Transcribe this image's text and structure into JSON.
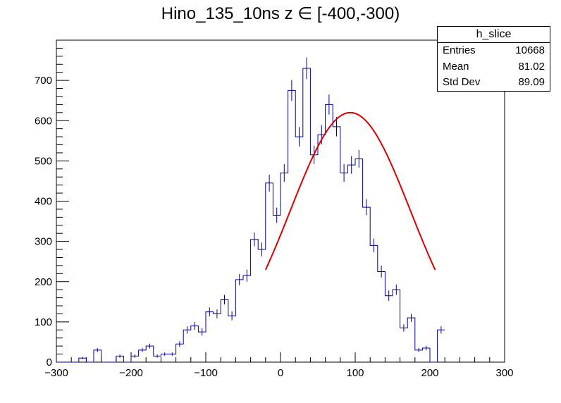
{
  "canvas": {
    "background": "#ffffff"
  },
  "chart_data": {
    "type": "histogram",
    "title": "Hino_135_10ns z  ∈ [-400,-300)",
    "xlim": [
      -300,
      300
    ],
    "ylim": [
      0,
      800
    ],
    "xticks": [
      -300,
      -200,
      -100,
      0,
      100,
      200,
      300
    ],
    "xtick_labels": [
      "−300",
      "−200",
      "−100",
      "0",
      "100",
      "200",
      "300"
    ],
    "yticks": [
      0,
      100,
      200,
      300,
      400,
      500,
      600,
      700
    ],
    "bin_width": 10,
    "bin_edges_start": -300,
    "values": [
      0,
      0,
      0,
      10,
      0,
      30,
      0,
      0,
      15,
      0,
      15,
      30,
      40,
      15,
      20,
      20,
      45,
      80,
      90,
      75,
      125,
      120,
      155,
      115,
      205,
      215,
      305,
      280,
      445,
      365,
      470,
      675,
      560,
      730,
      515,
      565,
      640,
      585,
      470,
      490,
      505,
      385,
      290,
      225,
      165,
      180,
      85,
      110,
      30,
      35,
      0,
      80
    ],
    "errors": [
      0,
      0,
      0,
      3,
      0,
      5,
      0,
      0,
      4,
      0,
      4,
      5,
      6,
      4,
      4,
      4,
      7,
      9,
      10,
      9,
      11,
      11,
      12,
      11,
      14,
      15,
      17,
      17,
      21,
      19,
      22,
      26,
      24,
      27,
      23,
      24,
      25,
      24,
      22,
      22,
      22,
      20,
      17,
      15,
      13,
      13,
      9,
      10,
      5,
      6,
      0,
      9
    ],
    "fit": {
      "mean": 93.5,
      "sigma": 80.5,
      "amplitude": 620,
      "range": [
        -20,
        207
      ]
    },
    "colors": {
      "hist": "#000099",
      "fit": "#dd0000",
      "axis": "#000000"
    },
    "stats": {
      "name": "h_slice",
      "rows": [
        {
          "label": "Entries",
          "value": "10668"
        },
        {
          "label": "Mean",
          "value": "81.02"
        },
        {
          "label": "Std Dev",
          "value": "89.09"
        }
      ]
    }
  }
}
